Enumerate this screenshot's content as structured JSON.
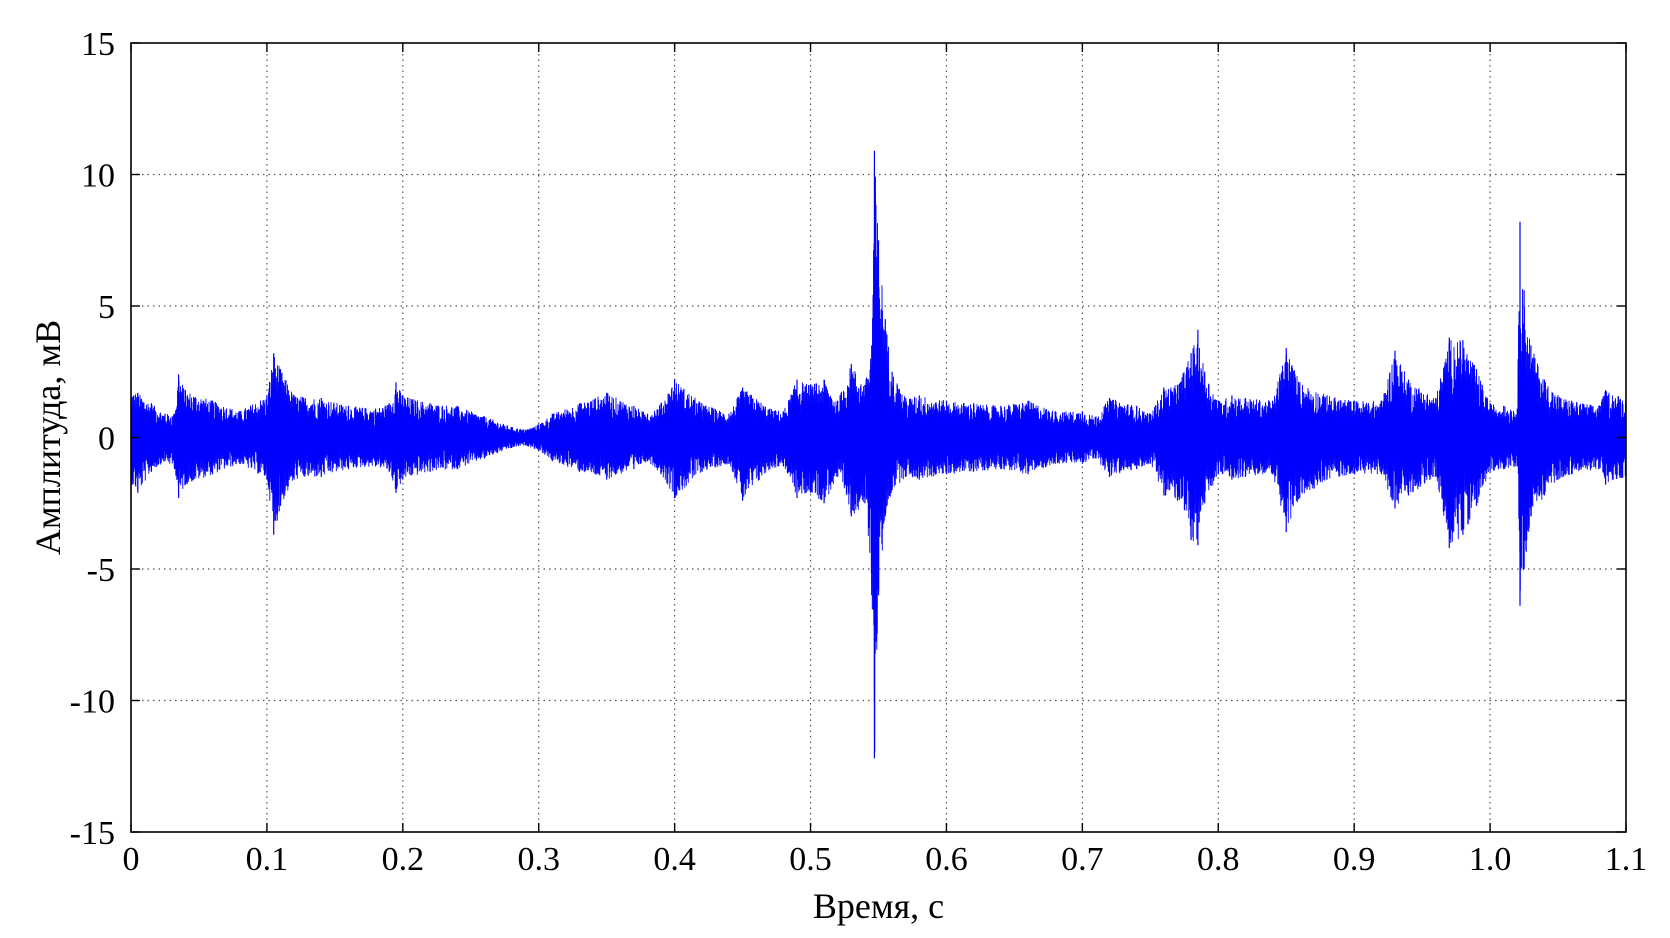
{
  "chart_data": {
    "type": "line",
    "title": "",
    "xlabel": "Время, с",
    "ylabel": "Амплитуда, мВ",
    "xlim": [
      0,
      1.1
    ],
    "ylim": [
      -15,
      15
    ],
    "x_ticks": [
      0,
      0.1,
      0.2,
      0.3,
      0.4,
      0.5,
      0.6,
      0.7,
      0.8,
      0.9,
      1.0,
      1.1
    ],
    "x_tick_labels": [
      "0",
      "0.1",
      "0.2",
      "0.3",
      "0.4",
      "0.5",
      "0.6",
      "0.7",
      "0.8",
      "0.9",
      "1.0",
      "1.1"
    ],
    "y_ticks": [
      15,
      10,
      5,
      0,
      -5,
      -10,
      -15
    ],
    "y_tick_labels": [
      "15",
      "10",
      "5",
      "0",
      "-5",
      "-10",
      "-15"
    ],
    "grid": true,
    "legend": "none",
    "series": [
      {
        "color": "#0000ff",
        "envelope_x": [
          0.0,
          0.005,
          0.015,
          0.025,
          0.032,
          0.035,
          0.04,
          0.06,
          0.08,
          0.1,
          0.105,
          0.11,
          0.12,
          0.14,
          0.16,
          0.18,
          0.19,
          0.195,
          0.2,
          0.22,
          0.24,
          0.26,
          0.28,
          0.29,
          0.3,
          0.31,
          0.33,
          0.35,
          0.37,
          0.38,
          0.39,
          0.4,
          0.42,
          0.44,
          0.45,
          0.47,
          0.48,
          0.49,
          0.5,
          0.51,
          0.52,
          0.53,
          0.54,
          0.545,
          0.547,
          0.55,
          0.555,
          0.56,
          0.57,
          0.58,
          0.6,
          0.62,
          0.64,
          0.66,
          0.68,
          0.7,
          0.71,
          0.72,
          0.74,
          0.75,
          0.76,
          0.77,
          0.78,
          0.785,
          0.79,
          0.8,
          0.81,
          0.82,
          0.84,
          0.85,
          0.86,
          0.88,
          0.9,
          0.92,
          0.93,
          0.94,
          0.96,
          0.97,
          0.98,
          0.99,
          1.0,
          1.01,
          1.02,
          1.022,
          1.025,
          1.03,
          1.04,
          1.05,
          1.06,
          1.08,
          1.085,
          1.1
        ],
        "envelope_max": [
          1.8,
          1.7,
          1.3,
          0.9,
          0.9,
          2.4,
          1.8,
          1.4,
          1.0,
          1.6,
          3.2,
          2.6,
          1.6,
          1.5,
          1.2,
          1.1,
          1.3,
          2.1,
          1.6,
          1.3,
          1.2,
          0.8,
          0.4,
          0.3,
          0.5,
          0.9,
          1.3,
          1.7,
          1.2,
          0.9,
          1.3,
          2.2,
          1.3,
          0.9,
          1.9,
          1.1,
          1.0,
          2.2,
          2.0,
          2.2,
          1.4,
          2.8,
          2.0,
          3.5,
          10.9,
          7.5,
          4.5,
          2.5,
          1.5,
          1.6,
          1.4,
          1.3,
          1.2,
          1.4,
          1.0,
          1.0,
          0.8,
          1.5,
          1.2,
          0.9,
          1.9,
          2.0,
          3.2,
          4.1,
          2.5,
          1.4,
          1.6,
          1.5,
          1.4,
          3.4,
          2.1,
          1.6,
          1.4,
          1.4,
          3.3,
          2.2,
          1.5,
          3.8,
          3.7,
          2.6,
          1.3,
          1.2,
          1.1,
          8.2,
          5.6,
          3.5,
          2.2,
          1.6,
          1.4,
          1.2,
          1.8,
          1.5
        ],
        "envelope_min": [
          -1.8,
          -2.1,
          -1.3,
          -0.9,
          -1.2,
          -2.3,
          -1.8,
          -1.4,
          -1.0,
          -1.6,
          -3.7,
          -2.6,
          -1.6,
          -1.5,
          -1.2,
          -1.1,
          -1.3,
          -2.1,
          -1.6,
          -1.3,
          -1.2,
          -0.8,
          -0.4,
          -0.3,
          -0.5,
          -0.9,
          -1.3,
          -1.6,
          -1.2,
          -0.9,
          -1.4,
          -2.3,
          -1.3,
          -1.0,
          -2.4,
          -1.2,
          -1.1,
          -2.3,
          -2.1,
          -2.5,
          -1.5,
          -3.0,
          -2.5,
          -6.0,
          -12.2,
          -6.0,
          -3.0,
          -2.0,
          -1.5,
          -1.6,
          -1.4,
          -1.3,
          -1.2,
          -1.4,
          -1.0,
          -1.0,
          -0.8,
          -1.5,
          -1.2,
          -1.0,
          -2.2,
          -2.4,
          -3.9,
          -4.1,
          -2.5,
          -1.4,
          -1.6,
          -1.5,
          -1.4,
          -3.6,
          -2.3,
          -1.6,
          -1.4,
          -1.4,
          -2.7,
          -2.2,
          -1.5,
          -4.2,
          -3.7,
          -2.6,
          -1.3,
          -1.2,
          -1.1,
          -6.4,
          -5.0,
          -3.0,
          -2.2,
          -1.6,
          -1.4,
          -1.2,
          -1.8,
          -1.5
        ]
      }
    ]
  }
}
